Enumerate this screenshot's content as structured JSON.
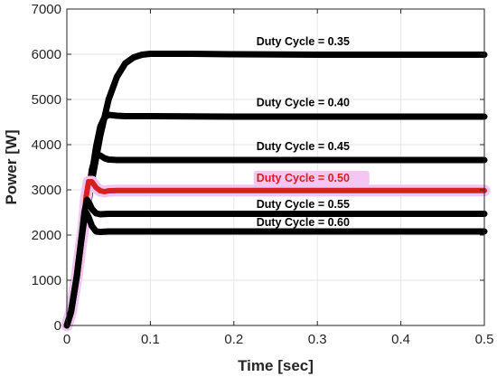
{
  "chart_data": {
    "type": "line",
    "title": "",
    "xlabel": "Time [sec]",
    "ylabel": "Power [W]",
    "xlim": [
      0,
      0.5
    ],
    "ylim": [
      0,
      7000
    ],
    "xticks": [
      0,
      0.1,
      0.2,
      0.3,
      0.4,
      0.5
    ],
    "xtick_labels": [
      "0",
      "0.1",
      "0.2",
      "0.3",
      "0.4",
      "0.5"
    ],
    "yticks": [
      0,
      1000,
      2000,
      3000,
      4000,
      5000,
      6000,
      7000
    ],
    "ytick_labels": [
      "0",
      "1000",
      "2000",
      "3000",
      "4000",
      "5000",
      "6000",
      "7000"
    ],
    "grid": true,
    "series": [
      {
        "label": "Duty Cycle = 0.35",
        "color": "#000000",
        "x": [
          0,
          0.005,
          0.012,
          0.02,
          0.03,
          0.04,
          0.05,
          0.06,
          0.07,
          0.08,
          0.09,
          0.1,
          0.15,
          0.2,
          0.3,
          0.4,
          0.5
        ],
        "y": [
          0,
          300,
          1100,
          2050,
          3200,
          4200,
          5000,
          5500,
          5800,
          5930,
          5990,
          6010,
          6010,
          6000,
          5990,
          5990,
          5990
        ]
      },
      {
        "label": "Duty Cycle = 0.40",
        "color": "#000000",
        "x": [
          0,
          0.005,
          0.012,
          0.02,
          0.03,
          0.035,
          0.04,
          0.045,
          0.05,
          0.055,
          0.06,
          0.07,
          0.1,
          0.2,
          0.3,
          0.4,
          0.5
        ],
        "y": [
          0,
          300,
          1100,
          2050,
          3350,
          3950,
          4400,
          4600,
          4660,
          4650,
          4640,
          4630,
          4630,
          4620,
          4620,
          4620,
          4620
        ]
      },
      {
        "label": "Duty Cycle = 0.45",
        "color": "#000000",
        "x": [
          0,
          0.005,
          0.012,
          0.02,
          0.025,
          0.03,
          0.035,
          0.04,
          0.045,
          0.05,
          0.06,
          0.08,
          0.1,
          0.2,
          0.3,
          0.4,
          0.5
        ],
        "y": [
          0,
          300,
          1100,
          2050,
          2800,
          3450,
          3780,
          3760,
          3700,
          3670,
          3660,
          3660,
          3660,
          3660,
          3660,
          3660,
          3660
        ]
      },
      {
        "label": "Duty Cycle = 0.50",
        "color": "#d42020",
        "x": [
          0,
          0.005,
          0.012,
          0.02,
          0.023,
          0.026,
          0.03,
          0.035,
          0.04,
          0.045,
          0.05,
          0.06,
          0.1,
          0.2,
          0.3,
          0.4,
          0.5
        ],
        "y": [
          0,
          300,
          1100,
          2200,
          2850,
          3180,
          3180,
          3050,
          2980,
          2960,
          2980,
          2985,
          2985,
          2985,
          2985,
          2985,
          2985
        ]
      },
      {
        "label": "Duty Cycle = 0.55",
        "color": "#000000",
        "x": [
          0,
          0.005,
          0.012,
          0.018,
          0.021,
          0.024,
          0.027,
          0.03,
          0.035,
          0.04,
          0.05,
          0.06,
          0.1,
          0.2,
          0.3,
          0.4,
          0.5
        ],
        "y": [
          0,
          300,
          1100,
          2000,
          2500,
          2780,
          2700,
          2580,
          2480,
          2460,
          2470,
          2470,
          2470,
          2470,
          2470,
          2470,
          2470
        ]
      },
      {
        "label": "Duty Cycle = 0.60",
        "color": "#000000",
        "x": [
          0,
          0.005,
          0.012,
          0.017,
          0.02,
          0.023,
          0.026,
          0.03,
          0.035,
          0.04,
          0.05,
          0.06,
          0.1,
          0.2,
          0.3,
          0.4,
          0.5
        ],
        "y": [
          0,
          300,
          1100,
          1850,
          2250,
          2500,
          2400,
          2200,
          2080,
          2070,
          2080,
          2080,
          2080,
          2080,
          2080,
          2080,
          2080
        ]
      }
    ],
    "annotations": [
      {
        "text": "Duty Cycle = 0.35",
        "x": 0.227,
        "y": 6200,
        "color": "#000000",
        "highlight": ""
      },
      {
        "text": "Duty Cycle = 0.40",
        "x": 0.227,
        "y": 4850,
        "color": "#000000",
        "highlight": ""
      },
      {
        "text": "Duty Cycle = 0.45",
        "x": 0.227,
        "y": 3880,
        "color": "#000000",
        "highlight": ""
      },
      {
        "text": "Duty Cycle = 0.50",
        "x": 0.227,
        "y": 3180,
        "color": "#d42020",
        "highlight": "#f4c6f4"
      },
      {
        "text": "Duty Cycle = 0.55",
        "x": 0.227,
        "y": 2600,
        "color": "#000000",
        "highlight": ""
      },
      {
        "text": "Duty Cycle = 0.60",
        "x": 0.227,
        "y": 2200,
        "color": "#000000",
        "highlight": ""
      }
    ]
  }
}
